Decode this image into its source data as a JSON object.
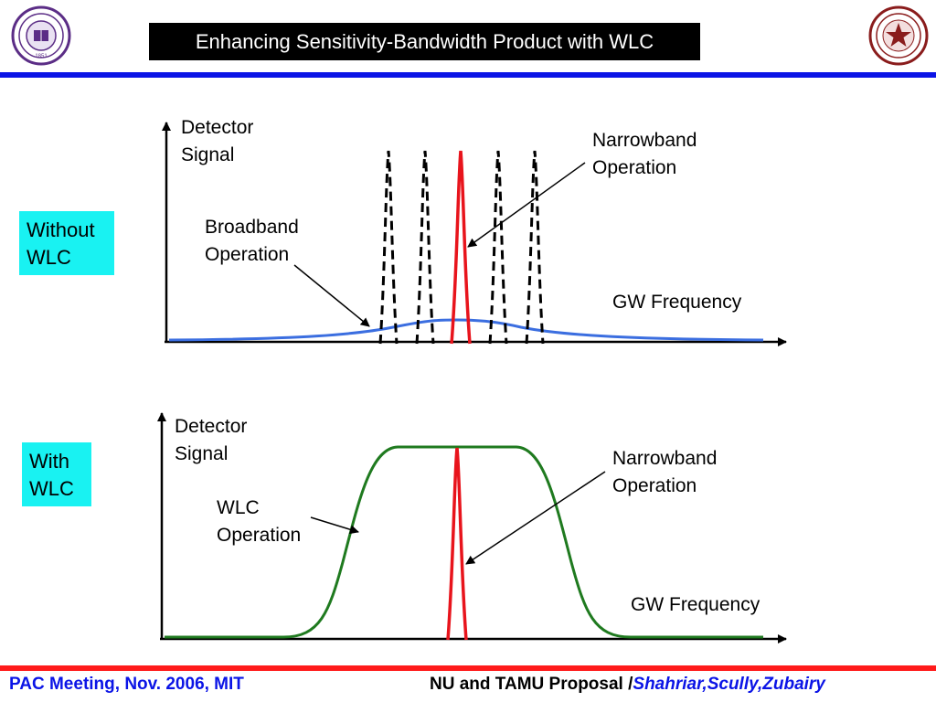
{
  "slide": {
    "title": "Enhancing Sensitivity-Bandwidth Product with WLC",
    "footer": {
      "left": "PAC Meeting, Nov. 2006, MIT",
      "right_prefix": "NU and TAMU Proposal /",
      "right_names": "Shahriar,Scully,Zubairy"
    },
    "logos": {
      "left": {
        "name": "northwestern-university-seal",
        "year": "1851"
      },
      "right": {
        "name": "texas-am-university-seal"
      }
    },
    "colors": {
      "title_bg": "#000000",
      "accent_blue": "#0b14e6",
      "footer_red": "#ff1a1a",
      "side_label_bg": "#19f2f2",
      "narrowband": "#e8141c",
      "broadband": "#3b6ee0",
      "wlc": "#1f7a1f"
    }
  },
  "top_panel": {
    "side_label_line1": "Without",
    "side_label_line2": "WLC",
    "y_label_line1": "Detector",
    "y_label_line2": "Signal",
    "x_label": "GW Frequency",
    "broadband_line1": "Broadband",
    "broadband_line2": "Operation",
    "narrowband_line1": "Narrowband",
    "narrowband_line2": "Operation"
  },
  "bottom_panel": {
    "side_label_line1": "With",
    "side_label_line2": "WLC",
    "y_label_line1": "Detector",
    "y_label_line2": "Signal",
    "x_label": "GW Frequency",
    "wlc_line1": "WLC",
    "wlc_line2": "Operation",
    "narrowband_line1": "Narrowband",
    "narrowband_line2": "Operation"
  }
}
